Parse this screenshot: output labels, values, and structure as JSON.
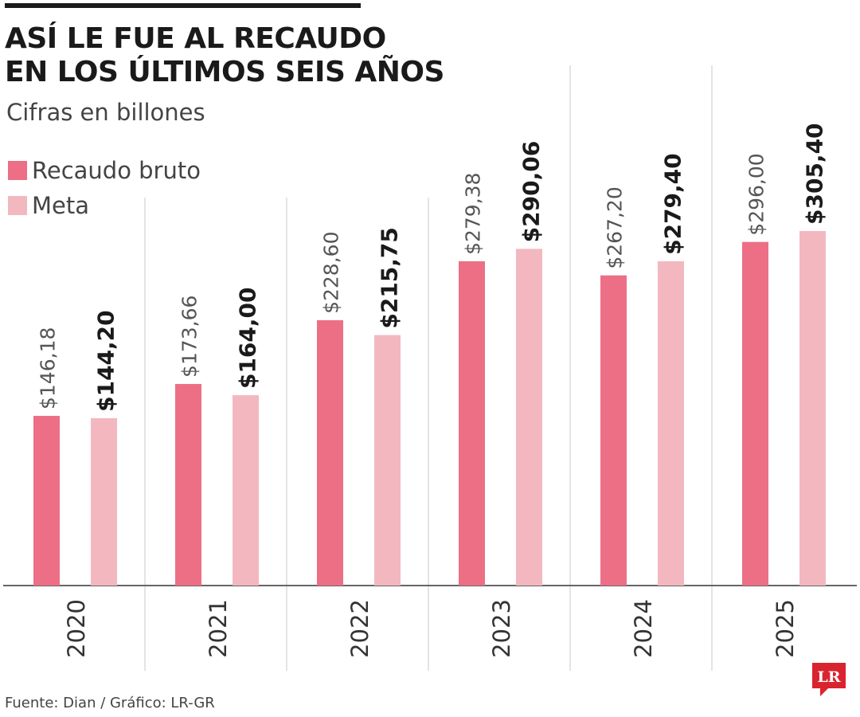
{
  "header": {
    "title_line1": "ASÍ LE FUE AL RECAUDO",
    "title_line2": "EN LOS ÚLTIMOS SEIS AÑOS",
    "subtitle": "Cifras en billones"
  },
  "legend": {
    "items": [
      {
        "label": "Recaudo bruto",
        "color": "#ec6f86"
      },
      {
        "label": "Meta",
        "color": "#f3b8bf"
      }
    ]
  },
  "footer": {
    "source": "Fuente: Dian / Gráfico: LR-GR",
    "logo_text": "LR",
    "logo_color": "#d9232e"
  },
  "chart_data": {
    "type": "bar",
    "categories": [
      "2020",
      "2021",
      "2022",
      "2023",
      "2024",
      "2025"
    ],
    "series": [
      {
        "name": "Recaudo bruto",
        "color": "#ec6f86",
        "values": [
          146.18,
          173.66,
          228.6,
          279.38,
          267.2,
          296.0
        ],
        "labels": [
          "$146,18",
          "$173,66",
          "$228,60",
          "$279,38",
          "$267,20",
          "$296,00"
        ]
      },
      {
        "name": "Meta",
        "color": "#f3b8bf",
        "values": [
          144.2,
          164.0,
          215.75,
          290.06,
          279.4,
          305.4
        ],
        "labels": [
          "$144,20",
          "$164,00",
          "$215,75",
          "$290,06",
          "$279,40",
          "$305,40"
        ]
      }
    ],
    "title": "ASÍ LE FUE AL RECAUDO EN LOS ÚLTIMOS SEIS AÑOS",
    "subtitle": "Cifras en billones",
    "xlabel": "",
    "ylabel": "",
    "ylim": [
      0,
      305.4
    ],
    "grid": false,
    "legend_position": "top-left",
    "orientation": "vertical-bars-rotated-labels"
  }
}
